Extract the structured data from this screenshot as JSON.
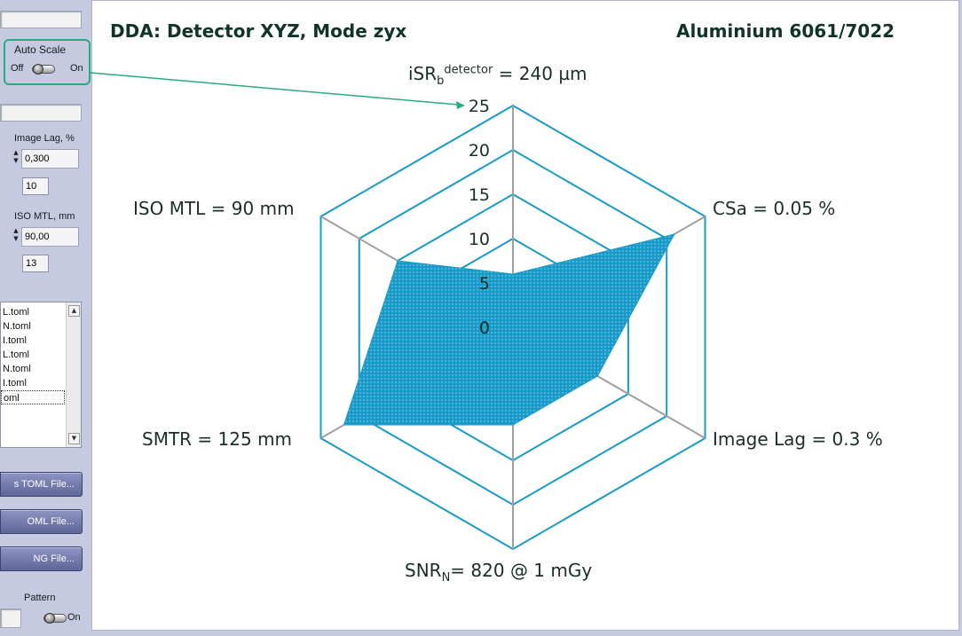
{
  "left_panel": {
    "autoscale": {
      "label": "Auto Scale",
      "off": "Off",
      "on": "On"
    },
    "image_lag": {
      "label": "Image Lag, %",
      "value": "0,300",
      "index": "10"
    },
    "iso_mtl": {
      "label": "ISO MTL, mm",
      "value": "90,00",
      "index": "13"
    },
    "file_list": [
      "L.toml",
      "N.toml",
      "I.toml",
      "L.toml",
      "N.toml",
      "I.toml",
      "oml"
    ],
    "buttons": [
      "s TOML File...",
      "OML File...",
      "NG File..."
    ],
    "pattern": {
      "label": "Pattern",
      "on": "On"
    }
  },
  "chart": {
    "title_left": "DDA: Detector XYZ, Mode zyx",
    "title_right": "Aluminium 6061/7022",
    "labels": {
      "top_prefix": "iSR",
      "top_sub": "b",
      "top_sup": "detector",
      "top_suffix": " = 240 µm",
      "upper_right": "CSa = 0.05 %",
      "lower_right": "Image Lag = 0.3 %",
      "bottom_prefix": "SNR",
      "bottom_sub": "N",
      "bottom_suffix": "= 820 @ 1 mGy",
      "lower_left": "SMTR = 125 mm",
      "upper_left": "ISO MTL = 90 mm"
    },
    "ticks": [
      "0",
      "5",
      "10",
      "15",
      "20",
      "25"
    ]
  },
  "chart_data": {
    "type": "radar",
    "title": "DDA: Detector XYZ, Mode zyx",
    "subtitle": "Aluminium 6061/7022",
    "axes": [
      "iSRb detector = 240 µm",
      "CSa = 0.05 %",
      "Image Lag = 0.3 %",
      "SNRN= 820 @ 1 mGy",
      "SMTR = 125 mm",
      "ISO MTL = 90 mm"
    ],
    "values": [
      6,
      21,
      11,
      11,
      22,
      15
    ],
    "rlim": [
      0,
      25
    ],
    "ring_ticks": [
      0,
      5,
      10,
      15,
      20,
      25
    ],
    "colors": {
      "grid_ring": "#1a9ac8",
      "spoke": "#a0a0a0",
      "fill": "#1a9ac8"
    }
  }
}
